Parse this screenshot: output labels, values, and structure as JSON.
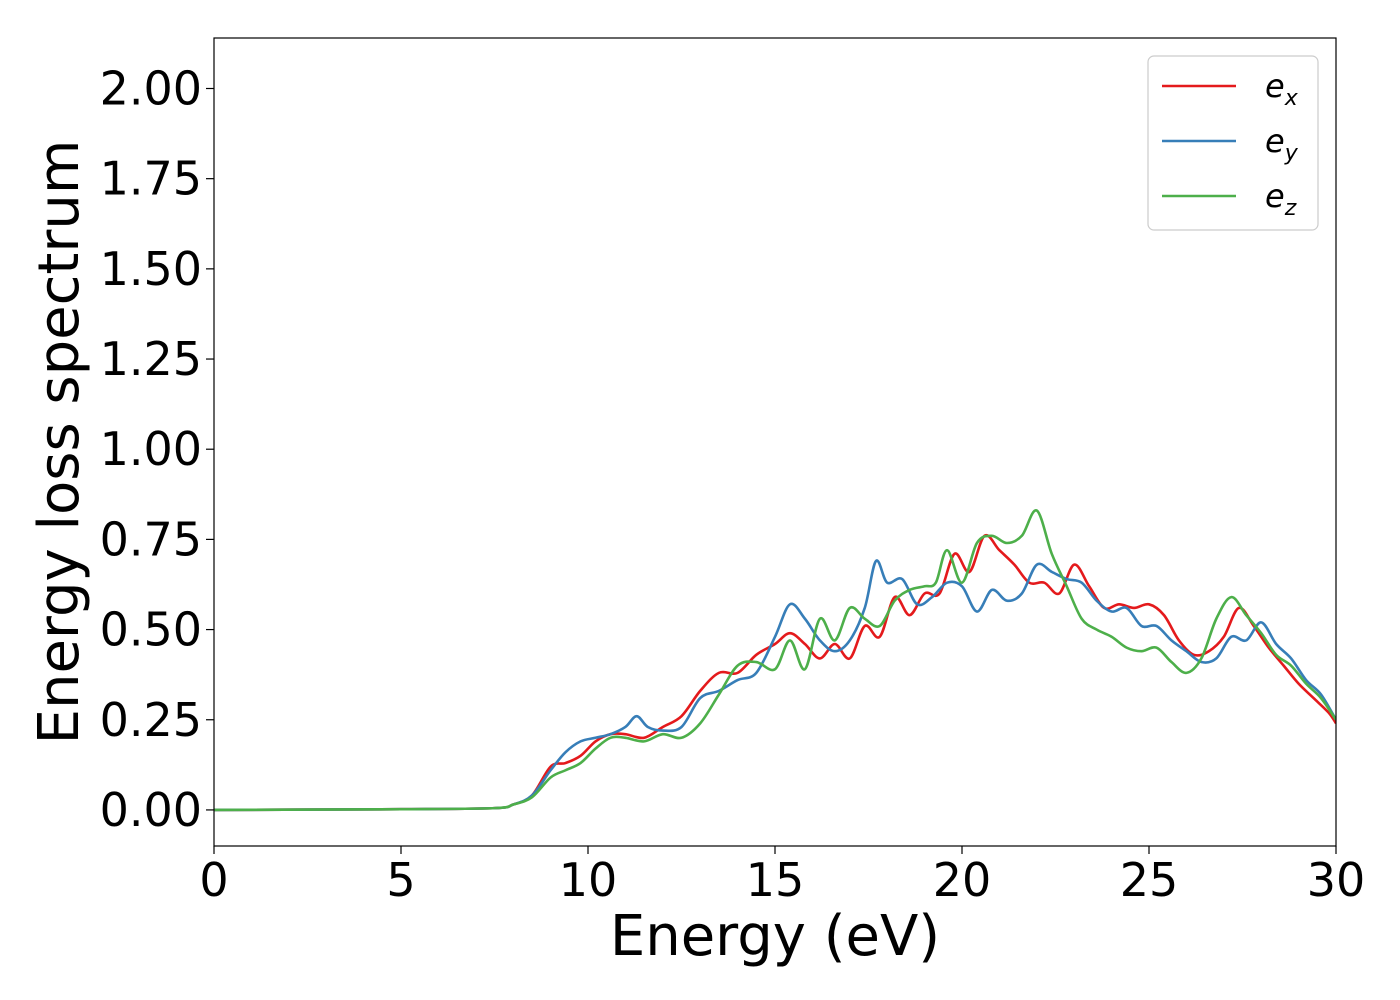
{
  "chart_data": {
    "type": "line",
    "xlabel": "Energy (eV)",
    "ylabel": "Energy loss spectrum",
    "xlim": [
      0,
      30
    ],
    "ylim": [
      -0.1,
      2.14
    ],
    "xticks": [
      0,
      5,
      10,
      15,
      20,
      25,
      30
    ],
    "xtick_labels": [
      "0",
      "5",
      "10",
      "15",
      "20",
      "25",
      "30"
    ],
    "yticks": [
      0.0,
      0.25,
      0.5,
      0.75,
      1.0,
      1.25,
      1.5,
      1.75,
      2.0
    ],
    "ytick_labels": [
      "0.00",
      "0.25",
      "0.50",
      "0.75",
      "1.00",
      "1.25",
      "1.50",
      "1.75",
      "2.00"
    ],
    "grid": false,
    "legend_position": "top-right",
    "series": [
      {
        "name": "e_x",
        "legend_base": "e",
        "legend_sub": "x",
        "color": "#e41a1c",
        "x": [
          0,
          5,
          7.5,
          8.0,
          8.5,
          9.0,
          9.4,
          9.8,
          10.2,
          10.6,
          11.0,
          11.5,
          12.0,
          12.5,
          13.0,
          13.5,
          14.0,
          14.5,
          15.0,
          15.4,
          15.8,
          16.2,
          16.6,
          17.0,
          17.4,
          17.8,
          18.2,
          18.6,
          19.0,
          19.4,
          19.8,
          20.2,
          20.6,
          21.0,
          21.4,
          21.8,
          22.2,
          22.6,
          23.0,
          23.4,
          23.8,
          24.2,
          24.6,
          25.0,
          25.4,
          25.8,
          26.2,
          26.6,
          27.0,
          27.4,
          27.8,
          28.2,
          28.6,
          29.0,
          29.4,
          29.8,
          30.0
        ],
        "y": [
          0.0,
          0.002,
          0.005,
          0.015,
          0.04,
          0.12,
          0.13,
          0.15,
          0.19,
          0.21,
          0.21,
          0.2,
          0.23,
          0.26,
          0.33,
          0.38,
          0.38,
          0.43,
          0.46,
          0.49,
          0.46,
          0.42,
          0.46,
          0.42,
          0.51,
          0.48,
          0.59,
          0.54,
          0.6,
          0.6,
          0.71,
          0.66,
          0.76,
          0.72,
          0.68,
          0.63,
          0.63,
          0.6,
          0.68,
          0.62,
          0.56,
          0.57,
          0.56,
          0.57,
          0.54,
          0.47,
          0.43,
          0.44,
          0.48,
          0.56,
          0.51,
          0.45,
          0.4,
          0.35,
          0.31,
          0.27,
          0.24
        ]
      },
      {
        "name": "e_y",
        "legend_base": "e",
        "legend_sub": "y",
        "color": "#377eb8",
        "x": [
          0,
          5,
          7.5,
          8.0,
          8.5,
          9.0,
          9.4,
          9.8,
          10.2,
          10.6,
          11.0,
          11.3,
          11.6,
          12.0,
          12.5,
          13.0,
          13.5,
          14.0,
          14.5,
          15.0,
          15.4,
          15.8,
          16.2,
          16.6,
          17.0,
          17.4,
          17.7,
          18.0,
          18.4,
          18.8,
          19.2,
          19.6,
          20.0,
          20.4,
          20.8,
          21.2,
          21.6,
          22.0,
          22.4,
          22.8,
          23.2,
          23.6,
          24.0,
          24.4,
          24.8,
          25.2,
          25.6,
          26.0,
          26.4,
          26.8,
          27.2,
          27.6,
          28.0,
          28.4,
          28.8,
          29.2,
          29.6,
          30.0
        ],
        "y": [
          0.0,
          0.002,
          0.005,
          0.015,
          0.04,
          0.11,
          0.16,
          0.19,
          0.2,
          0.21,
          0.23,
          0.26,
          0.23,
          0.22,
          0.23,
          0.31,
          0.33,
          0.36,
          0.38,
          0.48,
          0.57,
          0.53,
          0.47,
          0.44,
          0.47,
          0.56,
          0.69,
          0.63,
          0.64,
          0.57,
          0.59,
          0.63,
          0.62,
          0.55,
          0.61,
          0.58,
          0.6,
          0.68,
          0.66,
          0.64,
          0.63,
          0.58,
          0.55,
          0.56,
          0.51,
          0.51,
          0.47,
          0.44,
          0.41,
          0.42,
          0.48,
          0.47,
          0.52,
          0.46,
          0.42,
          0.36,
          0.32,
          0.25
        ]
      },
      {
        "name": "e_z",
        "legend_base": "e",
        "legend_sub": "z",
        "color": "#4daf4a",
        "x": [
          0,
          5,
          7.5,
          8.0,
          8.5,
          9.0,
          9.4,
          9.8,
          10.2,
          10.6,
          11.0,
          11.5,
          12.0,
          12.5,
          13.0,
          13.5,
          14.0,
          14.5,
          15.0,
          15.4,
          15.8,
          16.2,
          16.6,
          17.0,
          17.4,
          17.8,
          18.2,
          18.6,
          19.0,
          19.3,
          19.6,
          20.0,
          20.4,
          20.8,
          21.2,
          21.6,
          22.0,
          22.4,
          22.8,
          23.2,
          23.6,
          24.0,
          24.4,
          24.8,
          25.2,
          25.6,
          26.0,
          26.4,
          26.8,
          27.2,
          27.6,
          28.0,
          28.4,
          28.8,
          29.2,
          29.6,
          30.0
        ],
        "y": [
          0.0,
          0.002,
          0.005,
          0.015,
          0.035,
          0.09,
          0.11,
          0.13,
          0.17,
          0.2,
          0.2,
          0.19,
          0.21,
          0.2,
          0.24,
          0.32,
          0.4,
          0.41,
          0.39,
          0.47,
          0.39,
          0.53,
          0.47,
          0.56,
          0.53,
          0.51,
          0.58,
          0.61,
          0.62,
          0.63,
          0.72,
          0.63,
          0.74,
          0.76,
          0.74,
          0.76,
          0.83,
          0.71,
          0.62,
          0.53,
          0.5,
          0.48,
          0.45,
          0.44,
          0.45,
          0.41,
          0.38,
          0.42,
          0.53,
          0.59,
          0.54,
          0.49,
          0.43,
          0.4,
          0.35,
          0.31,
          0.25
        ]
      }
    ]
  }
}
